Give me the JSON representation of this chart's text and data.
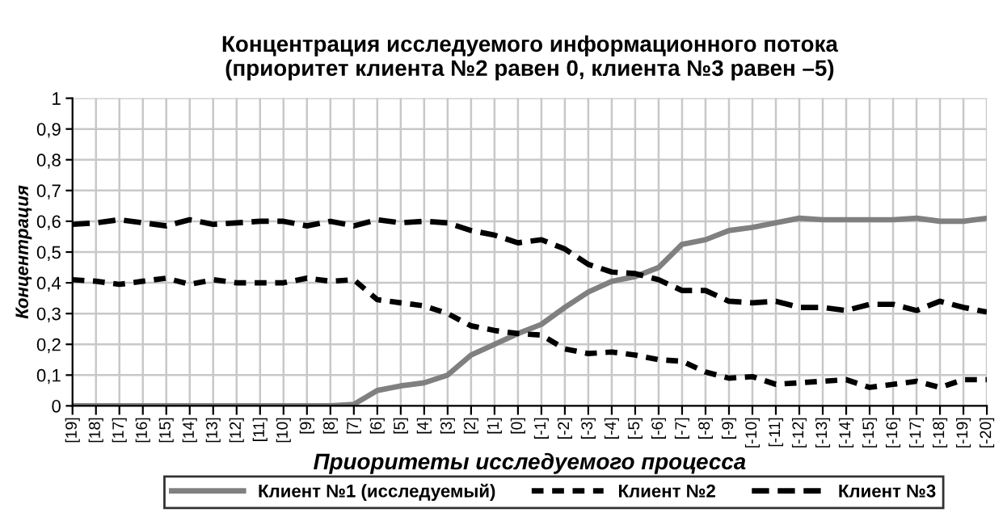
{
  "chart_data": {
    "type": "line",
    "title": "Концентрация исследуемого информационного потока\n(приоритет клиента №2 равен 0, клиента №3 равен –5)",
    "xlabel": "Приоритеты исследуемого процесса",
    "ylabel": "Концентрация",
    "categories": [
      "[19]",
      "[18]",
      "[17]",
      "[16]",
      "[15]",
      "[14]",
      "[13]",
      "[12]",
      "[11]",
      "[10]",
      "[9]",
      "[8]",
      "[7]",
      "[6]",
      "[5]",
      "[4]",
      "[3]",
      "[2]",
      "[1]",
      "[0]",
      "[-1]",
      "[-2]",
      "[-3]",
      "[-4]",
      "[-5]",
      "[-6]",
      "[-7]",
      "[-8]",
      "[-9]",
      "[-10]",
      "[-11]",
      "[-12]",
      "[-13]",
      "[-14]",
      "[-15]",
      "[-16]",
      "[-17]",
      "[-18]",
      "[-19]",
      "[-20]"
    ],
    "series": [
      {
        "name": "Клиент №1 (исследуемый)",
        "color": "#808080",
        "line_style": "solid",
        "values": [
          0,
          0,
          0,
          0,
          0,
          0,
          0,
          0,
          0,
          0,
          0,
          0,
          0.005,
          0.05,
          0.065,
          0.075,
          0.1,
          0.165,
          0.2,
          0.235,
          0.265,
          0.32,
          0.37,
          0.405,
          0.42,
          0.45,
          0.525,
          0.54,
          0.57,
          0.58,
          0.595,
          0.61,
          0.605,
          0.605,
          0.605,
          0.605,
          0.61,
          0.6,
          0.6,
          0.61
        ]
      },
      {
        "name": "Клиент №2",
        "color": "#000000",
        "line_style": "dashed",
        "values": [
          0.41,
          0.405,
          0.395,
          0.405,
          0.415,
          0.395,
          0.41,
          0.4,
          0.4,
          0.4,
          0.415,
          0.405,
          0.41,
          0.345,
          0.335,
          0.325,
          0.3,
          0.26,
          0.245,
          0.235,
          0.23,
          0.185,
          0.17,
          0.175,
          0.165,
          0.15,
          0.145,
          0.11,
          0.09,
          0.095,
          0.07,
          0.075,
          0.08,
          0.085,
          0.06,
          0.07,
          0.08,
          0.06,
          0.085,
          0.085
        ]
      },
      {
        "name": "Клиент №3",
        "color": "#000000",
        "line_style": "dashed",
        "values": [
          0.59,
          0.595,
          0.605,
          0.595,
          0.585,
          0.605,
          0.59,
          0.595,
          0.6,
          0.6,
          0.585,
          0.6,
          0.585,
          0.605,
          0.595,
          0.6,
          0.595,
          0.57,
          0.555,
          0.53,
          0.54,
          0.51,
          0.46,
          0.435,
          0.43,
          0.41,
          0.375,
          0.375,
          0.34,
          0.335,
          0.34,
          0.32,
          0.32,
          0.31,
          0.33,
          0.33,
          0.31,
          0.34,
          0.32,
          0.305
        ]
      }
    ],
    "ylim": [
      0,
      1
    ],
    "yticks": [
      0,
      {
        "value": 0.1,
        "label": "0,1"
      },
      {
        "value": 0.2,
        "label": "0,2"
      },
      {
        "value": 0.3,
        "label": "0,3"
      },
      {
        "value": 0.4,
        "label": "0,4"
      },
      {
        "value": 0.5,
        "label": "0,5"
      },
      {
        "value": 0.6,
        "label": "0,6"
      },
      {
        "value": 0.7,
        "label": "0,7"
      },
      {
        "value": 0.8,
        "label": "0,8"
      },
      {
        "value": 0.9,
        "label": "0,9"
      },
      1
    ],
    "grid": true,
    "legend": "bottom",
    "marker": "none"
  }
}
